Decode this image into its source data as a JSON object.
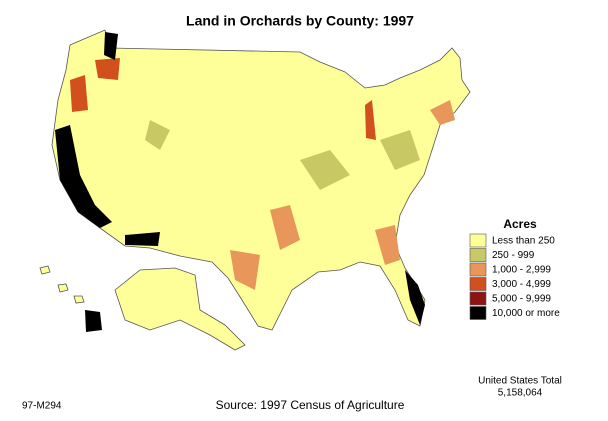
{
  "title": "Land in Orchards by County:  1997",
  "legend": {
    "title": "Acres",
    "items": [
      {
        "label": "Less than 250",
        "color": "#ffff99"
      },
      {
        "label": "250 - 999",
        "color": "#c8c864"
      },
      {
        "label": "1,000 - 2,999",
        "color": "#e8965a"
      },
      {
        "label": "3,000 - 4,999",
        "color": "#d2501e"
      },
      {
        "label": "5,000 - 9,999",
        "color": "#8c1414"
      },
      {
        "label": "10,000 or more",
        "color": "#000000"
      }
    ]
  },
  "total": {
    "label": "United States Total",
    "value": "5,158,064"
  },
  "code": "97-M294",
  "source": "Source:  1997 Census of Agriculture"
}
